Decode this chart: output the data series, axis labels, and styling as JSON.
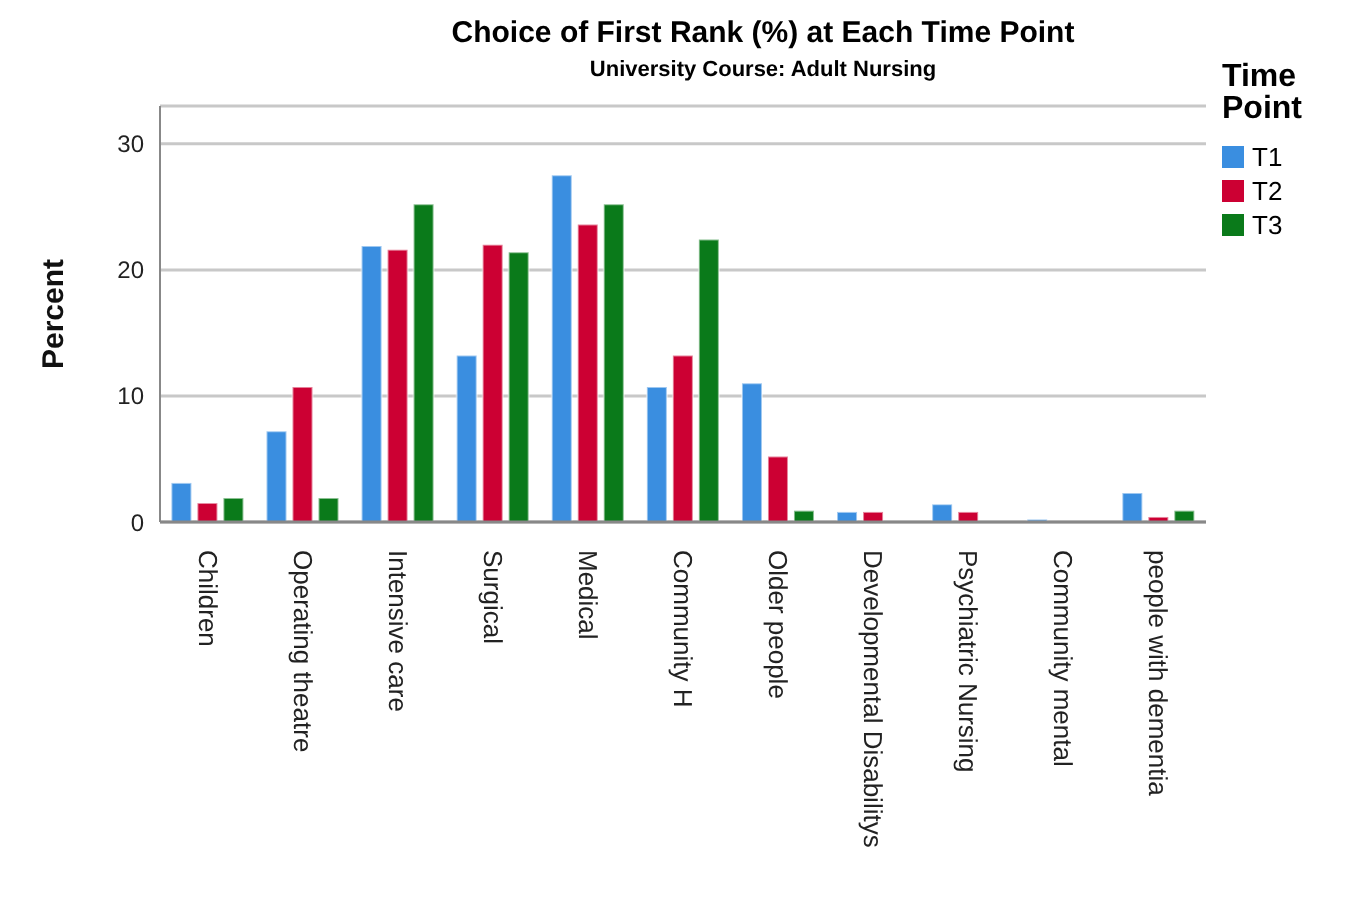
{
  "chart_data": {
    "type": "bar",
    "title": "Choice of First Rank (%) at Each Time Point",
    "subtitle": "University Course: Adult Nursing",
    "ylabel": "Percent",
    "legend_title": "Time Point",
    "categories": [
      "Children",
      "Operating theatre",
      "Intensive care",
      "Surgical",
      "Medical",
      "Community H",
      "Older people",
      "Developmental Disabilitys",
      "Psychiatric Nursing",
      "Community mental",
      "people with dementia"
    ],
    "series": [
      {
        "name": "T1",
        "color": "#3a8ee0",
        "values": [
          3.1,
          7.2,
          21.9,
          13.2,
          27.5,
          10.7,
          11.0,
          0.8,
          1.4,
          0.2,
          2.3
        ]
      },
      {
        "name": "T2",
        "color": "#cc0033",
        "values": [
          1.5,
          10.7,
          21.6,
          22.0,
          23.6,
          13.2,
          5.2,
          0.8,
          0.8,
          null,
          0.4
        ]
      },
      {
        "name": "T3",
        "color": "#0a7a1a",
        "values": [
          1.9,
          1.9,
          25.2,
          21.4,
          25.2,
          22.4,
          0.9,
          null,
          null,
          null,
          0.9
        ]
      }
    ],
    "ylim": [
      0,
      33
    ],
    "yticks": [
      0,
      10,
      20,
      30
    ],
    "grid": "y",
    "legend": "top right"
  }
}
